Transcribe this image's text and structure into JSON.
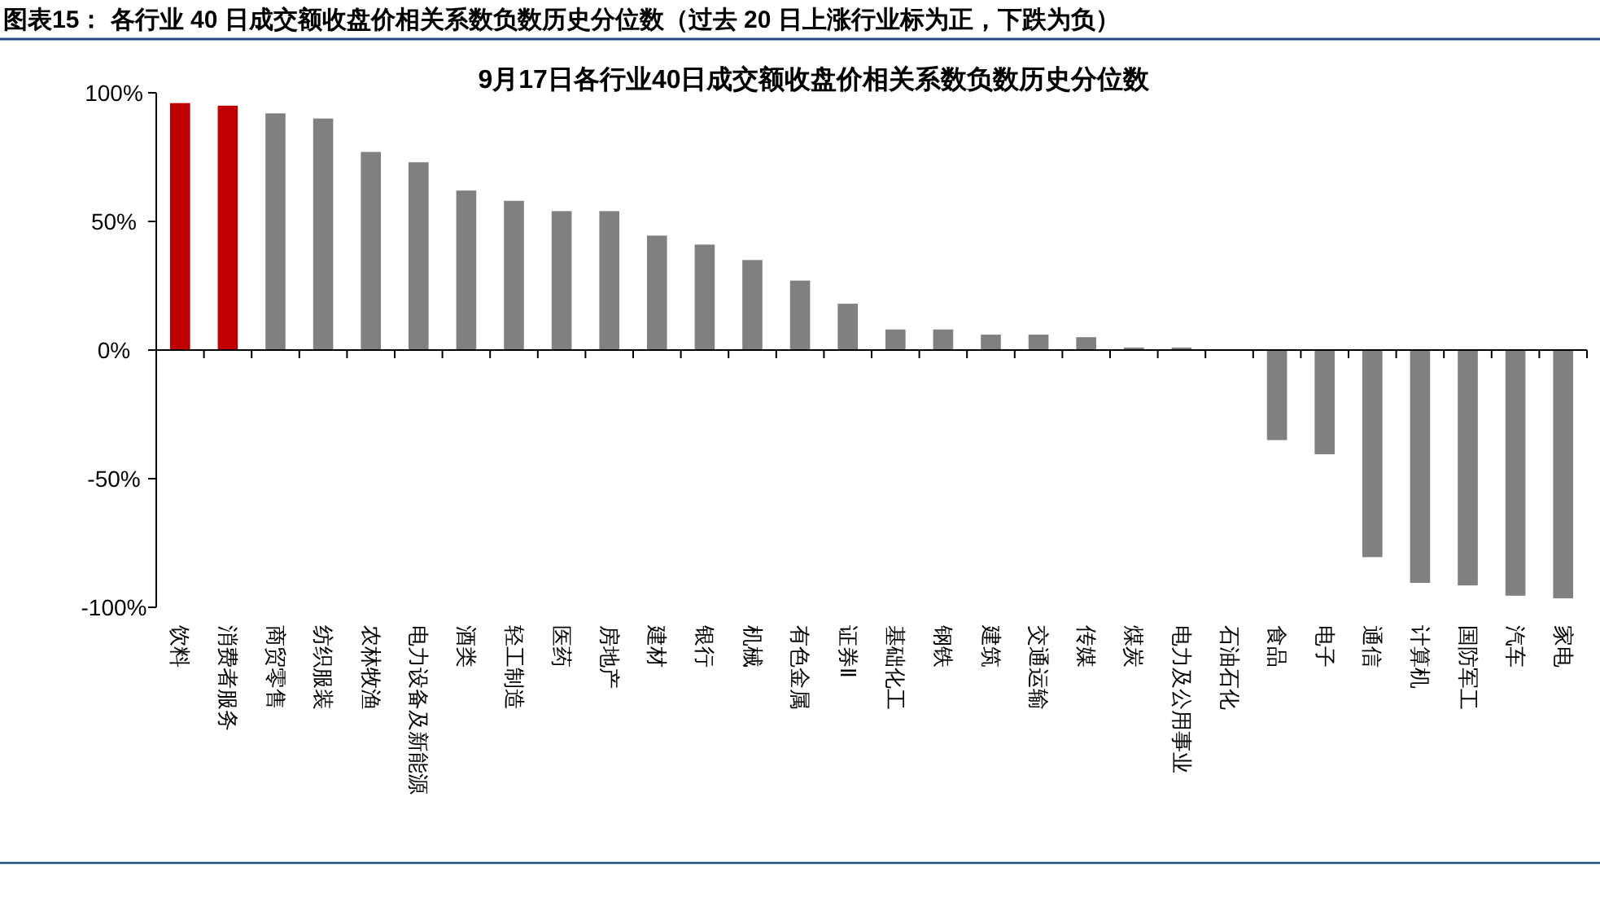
{
  "chart_data": {
    "type": "bar",
    "title": "图表15：  各行业 40 日成交额收盘价相关系数负数历史分位数（过去 20 日上涨行业标为正，下跌为负）",
    "subtitle": "9月17日各行业40日成交额收盘价相关系数负数历史分位数",
    "categories": [
      "饮料",
      "消费者服务",
      "商贸零售",
      "纺织服装",
      "农林牧渔",
      "电力设备及新能源",
      "酒类",
      "轻工制造",
      "医药",
      "房地产",
      "建材",
      "银行",
      "机械",
      "有色金属",
      "证券Ⅱ",
      "基础化工",
      "钢铁",
      "建筑",
      "交通运输",
      "传媒",
      "煤炭",
      "电力及公用事业",
      "石油石化",
      "食品",
      "电子",
      "通信",
      "计算机",
      "国防军工",
      "汽车",
      "家电"
    ],
    "values": [
      96,
      95,
      92,
      90,
      77,
      73,
      62,
      58,
      54,
      54,
      44.5,
      41,
      35,
      27,
      18,
      8,
      8,
      6,
      6,
      5,
      1,
      1,
      0,
      -35,
      -40.5,
      -80.5,
      -90.5,
      -91.5,
      -95.5,
      -96.5
    ],
    "colors": [
      "#c00000",
      "#c00000",
      "#808080",
      "#808080",
      "#808080",
      "#808080",
      "#808080",
      "#808080",
      "#808080",
      "#808080",
      "#808080",
      "#808080",
      "#808080",
      "#808080",
      "#808080",
      "#808080",
      "#808080",
      "#808080",
      "#808080",
      "#808080",
      "#808080",
      "#808080",
      "#808080",
      "#808080",
      "#808080",
      "#808080",
      "#808080",
      "#808080",
      "#808080",
      "#808080"
    ],
    "ylim": [
      -100,
      100
    ],
    "yticks": [
      {
        "value": -100,
        "label": "-100%"
      },
      {
        "value": -50,
        "label": "-50%"
      },
      {
        "value": 0,
        "label": "0%"
      },
      {
        "value": 50,
        "label": "50%"
      },
      {
        "value": 100,
        "label": "100%"
      }
    ]
  }
}
